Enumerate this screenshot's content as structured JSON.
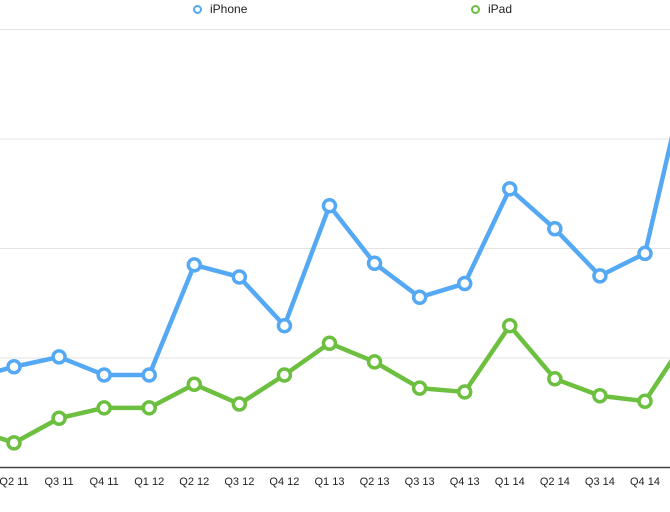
{
  "chart_data": {
    "type": "line",
    "title": "",
    "xlabel": "",
    "ylabel": "",
    "grid": true,
    "legend_position": "top",
    "ylim": [
      0,
      80
    ],
    "y_gridline_step": 20,
    "categories": [
      "Q2 11",
      "Q3 11",
      "Q4 11",
      "Q1 12",
      "Q2 12",
      "Q3 12",
      "Q4 12",
      "Q1 13",
      "Q2 13",
      "Q3 13",
      "Q4 13",
      "Q1 14",
      "Q2 14",
      "Q3 14",
      "Q4 14"
    ],
    "series": [
      {
        "name": "iPhone",
        "color": "#55a9f4",
        "values": [
          18.4,
          20.2,
          16.9,
          16.9,
          37.0,
          34.8,
          25.9,
          47.8,
          37.3,
          31.1,
          33.6,
          50.9,
          43.6,
          35.0,
          39.1
        ],
        "value_before_first_category": 16.2,
        "value_after_last_category": 74.5
      },
      {
        "name": "iPad",
        "color": "#6cbf3f",
        "values": [
          4.5,
          9.0,
          10.9,
          10.9,
          15.2,
          11.6,
          16.9,
          22.7,
          19.3,
          14.5,
          13.8,
          25.9,
          16.2,
          13.1,
          12.1
        ],
        "value_before_first_category": 7.3,
        "value_after_last_category": 24.6
      }
    ]
  }
}
